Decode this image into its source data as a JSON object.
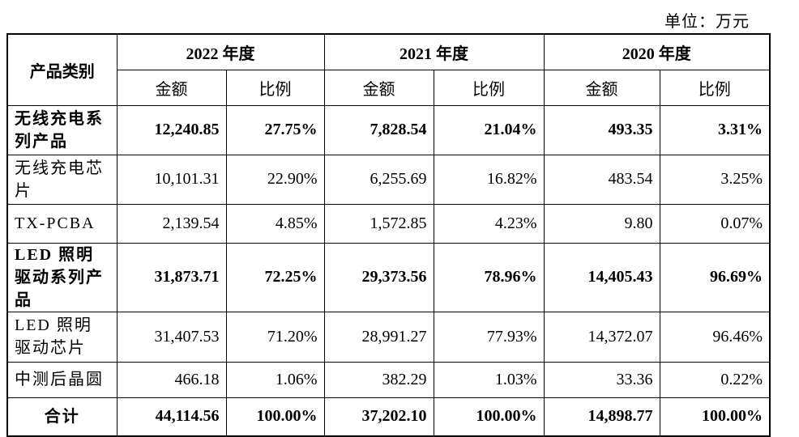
{
  "unit_label": "单位：万元",
  "header": {
    "category": "产品类别",
    "years": [
      "2022 年度",
      "2021 年度",
      "2020 年度"
    ],
    "amount": "金额",
    "ratio": "比例"
  },
  "rows": [
    {
      "name": "无线充电系列产品",
      "bold": true,
      "cells": [
        "12,240.85",
        "27.75%",
        "7,828.54",
        "21.04%",
        "493.35",
        "3.31%"
      ]
    },
    {
      "name": "无线充电芯片",
      "bold": false,
      "cells": [
        "10,101.31",
        "22.90%",
        "6,255.69",
        "16.82%",
        "483.54",
        "3.25%"
      ]
    },
    {
      "name": "TX-PCBA",
      "bold": false,
      "cells": [
        "2,139.54",
        "4.85%",
        "1,572.85",
        "4.23%",
        "9.80",
        "0.07%"
      ]
    },
    {
      "name": "LED 照明驱动系列产品",
      "bold": true,
      "cells": [
        "31,873.71",
        "72.25%",
        "29,373.56",
        "78.96%",
        "14,405.43",
        "96.69%"
      ]
    },
    {
      "name": "LED 照明驱动芯片",
      "bold": false,
      "cells": [
        "31,407.53",
        "71.20%",
        "28,991.27",
        "77.93%",
        "14,372.07",
        "96.46%"
      ]
    },
    {
      "name": "中测后晶圆",
      "bold": false,
      "cells": [
        "466.18",
        "1.06%",
        "382.29",
        "1.03%",
        "33.36",
        "0.22%"
      ]
    },
    {
      "name": "合计",
      "bold": true,
      "total": true,
      "cells": [
        "44,114.56",
        "100.00%",
        "37,202.10",
        "100.00%",
        "14,898.77",
        "100.00%"
      ]
    }
  ]
}
